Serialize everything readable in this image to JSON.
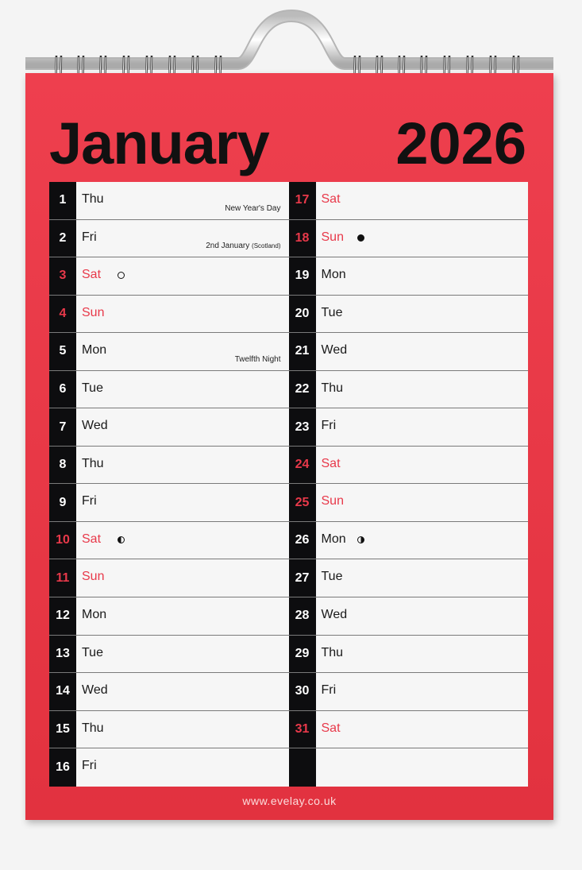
{
  "calendar": {
    "month": "January",
    "year": "2026",
    "website": "www.evelay.co.uk",
    "colors": {
      "accent": "#e8394a",
      "strip": "#0d0d0f",
      "page": "#ee3f4e"
    },
    "left_days": [
      {
        "n": "1",
        "d": "Thu",
        "note": "New Year's Day"
      },
      {
        "n": "2",
        "d": "Fri",
        "note": "2nd January",
        "note_small": "(Scotland)"
      },
      {
        "n": "3",
        "d": "Sat",
        "weekend": true,
        "moon": "full"
      },
      {
        "n": "4",
        "d": "Sun",
        "weekend": true
      },
      {
        "n": "5",
        "d": "Mon",
        "note": "Twelfth Night"
      },
      {
        "n": "6",
        "d": "Tue"
      },
      {
        "n": "7",
        "d": "Wed"
      },
      {
        "n": "8",
        "d": "Thu"
      },
      {
        "n": "9",
        "d": "Fri"
      },
      {
        "n": "10",
        "d": "Sat",
        "weekend": true,
        "moon": "last"
      },
      {
        "n": "11",
        "d": "Sun",
        "weekend": true
      },
      {
        "n": "12",
        "d": "Mon"
      },
      {
        "n": "13",
        "d": "Tue"
      },
      {
        "n": "14",
        "d": "Wed"
      },
      {
        "n": "15",
        "d": "Thu"
      },
      {
        "n": "16",
        "d": "Fri"
      }
    ],
    "right_days": [
      {
        "n": "17",
        "d": "Sat",
        "weekend": true
      },
      {
        "n": "18",
        "d": "Sun",
        "weekend": true,
        "moon": "new"
      },
      {
        "n": "19",
        "d": "Mon"
      },
      {
        "n": "20",
        "d": "Tue"
      },
      {
        "n": "21",
        "d": "Wed"
      },
      {
        "n": "22",
        "d": "Thu"
      },
      {
        "n": "23",
        "d": "Fri"
      },
      {
        "n": "24",
        "d": "Sat",
        "weekend": true
      },
      {
        "n": "25",
        "d": "Sun",
        "weekend": true
      },
      {
        "n": "26",
        "d": "Mon",
        "moon": "first"
      },
      {
        "n": "27",
        "d": "Tue"
      },
      {
        "n": "28",
        "d": "Wed"
      },
      {
        "n": "29",
        "d": "Thu"
      },
      {
        "n": "30",
        "d": "Fri"
      },
      {
        "n": "31",
        "d": "Sat",
        "weekend": true
      },
      {
        "n": "",
        "d": ""
      }
    ]
  }
}
